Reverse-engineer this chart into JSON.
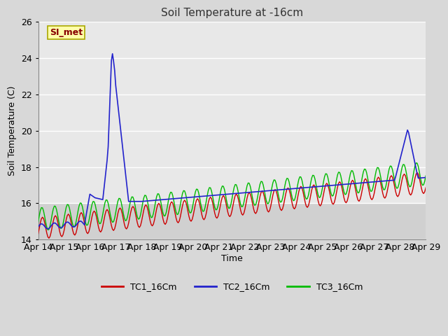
{
  "title": "Soil Temperature at -16cm",
  "xlabel": "Time",
  "ylabel": "Soil Temperature (C)",
  "ylim": [
    14,
    26
  ],
  "xlim": [
    0,
    15
  ],
  "outer_bg": "#d8d8d8",
  "plot_bg_light": "#e8e8e8",
  "plot_bg_dark": "#d0d0d0",
  "grid_color": "#ffffff",
  "annotation_text": "SI_met",
  "annotation_bg": "#ffffaa",
  "annotation_edge": "#aaa800",
  "annotation_text_color": "#880000",
  "tick_labels": [
    "Apr 14",
    "Apr 15",
    "Apr 16",
    "Apr 17",
    "Apr 18",
    "Apr 19",
    "Apr 20",
    "Apr 21",
    "Apr 22",
    "Apr 23",
    "Apr 24",
    "Apr 25",
    "Apr 26",
    "Apr 27",
    "Apr 28",
    "Apr 29"
  ],
  "tc1_color": "#cc0000",
  "tc2_color": "#2222cc",
  "tc3_color": "#00bb00",
  "legend_labels": [
    "TC1_16Cm",
    "TC2_16Cm",
    "TC3_16Cm"
  ],
  "figsize": [
    6.4,
    4.8
  ],
  "dpi": 100
}
